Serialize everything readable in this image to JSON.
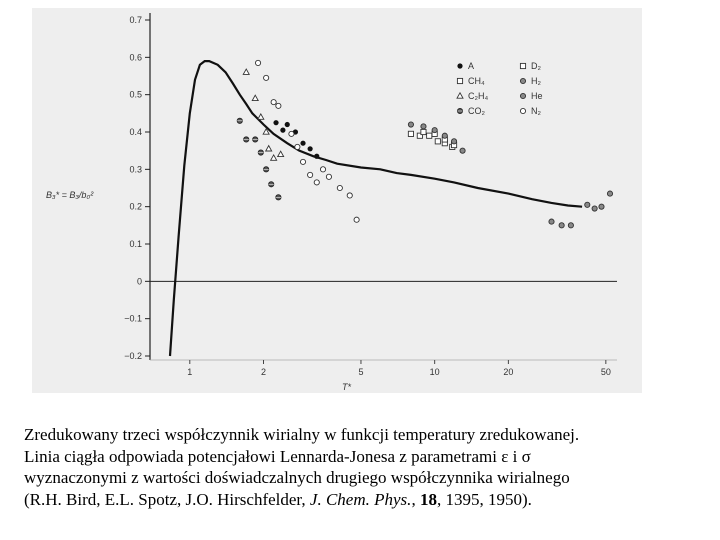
{
  "chart_data": {
    "type": "scatter",
    "ylabel": "B₃* = B₃/b₀²",
    "xlabel": "T*",
    "x_scale": "log",
    "xlim": [
      0.77,
      52
    ],
    "ylim": [
      -0.2,
      0.7
    ],
    "y_ticks": [
      -0.2,
      -0.1,
      0,
      0.1,
      0.2,
      0.3,
      0.4,
      0.5,
      0.6,
      0.7
    ],
    "y_tick_labels": [
      "−0.2",
      "−0.1",
      "0",
      "0.1",
      "0.2",
      "0.3",
      "0.4",
      "0.5",
      "0.6",
      "0.7"
    ],
    "x_ticks": [
      1,
      2,
      5,
      10,
      20,
      50
    ],
    "x_tick_labels": [
      "1",
      "2",
      "5",
      "10",
      "20",
      "50"
    ],
    "legend_position": "top-right",
    "curve": {
      "name": "Lennard-Jones",
      "x": [
        0.83,
        0.86,
        0.9,
        0.95,
        1.0,
        1.05,
        1.1,
        1.15,
        1.2,
        1.3,
        1.4,
        1.5,
        1.6,
        1.7,
        1.8,
        2.0,
        2.2,
        2.5,
        2.8,
        3.2,
        3.6,
        4.0,
        5.0,
        6.0,
        7.0,
        8.0,
        10.0,
        12.0,
        15.0,
        20.0,
        25.0,
        30.0,
        35.0,
        40.0
      ],
      "y": [
        -0.2,
        -0.05,
        0.12,
        0.31,
        0.45,
        0.54,
        0.58,
        0.59,
        0.59,
        0.58,
        0.56,
        0.53,
        0.5,
        0.475,
        0.45,
        0.42,
        0.395,
        0.37,
        0.35,
        0.335,
        0.325,
        0.315,
        0.305,
        0.3,
        0.29,
        0.285,
        0.275,
        0.265,
        0.25,
        0.235,
        0.22,
        0.21,
        0.203,
        0.2
      ]
    },
    "series": [
      {
        "name": "A",
        "marker": "filled-circle",
        "points": [
          [
            2.25,
            0.425
          ],
          [
            2.4,
            0.405
          ],
          [
            2.5,
            0.42
          ],
          [
            2.7,
            0.4
          ],
          [
            2.9,
            0.37
          ],
          [
            3.1,
            0.355
          ],
          [
            3.3,
            0.335
          ]
        ]
      },
      {
        "name": "CH₄",
        "marker": "hollow-square",
        "points": [
          [
            8.0,
            0.395
          ],
          [
            8.7,
            0.39
          ],
          [
            9.5,
            0.39
          ],
          [
            10.3,
            0.375
          ],
          [
            11.0,
            0.37
          ],
          [
            11.8,
            0.36
          ]
        ]
      },
      {
        "name": "C₂H₄",
        "marker": "hollow-triangle",
        "points": [
          [
            1.7,
            0.56
          ],
          [
            1.85,
            0.49
          ],
          [
            1.95,
            0.44
          ],
          [
            2.05,
            0.4
          ],
          [
            2.1,
            0.355
          ],
          [
            2.2,
            0.33
          ],
          [
            2.35,
            0.34
          ]
        ]
      },
      {
        "name": "CO₂",
        "marker": "crossed-circle",
        "points": [
          [
            1.6,
            0.43
          ],
          [
            1.7,
            0.38
          ],
          [
            1.85,
            0.38
          ],
          [
            1.95,
            0.345
          ],
          [
            2.05,
            0.3
          ],
          [
            2.15,
            0.26
          ],
          [
            2.3,
            0.225
          ]
        ]
      },
      {
        "name": "D₂",
        "marker": "hollow-square",
        "points": [
          [
            9.0,
            0.4
          ],
          [
            10.0,
            0.395
          ],
          [
            11.0,
            0.38
          ],
          [
            12.0,
            0.365
          ]
        ]
      },
      {
        "name": "H₂",
        "marker": "gray-dot-circle",
        "points": [
          [
            30.0,
            0.16
          ],
          [
            33.0,
            0.15
          ],
          [
            36.0,
            0.15
          ],
          [
            42.0,
            0.205
          ],
          [
            45.0,
            0.195
          ],
          [
            48.0,
            0.2
          ],
          [
            52.0,
            0.235
          ]
        ]
      },
      {
        "name": "He",
        "marker": "gray-dot-circle",
        "points": [
          [
            8.0,
            0.42
          ],
          [
            9.0,
            0.415
          ],
          [
            10.0,
            0.405
          ],
          [
            11.0,
            0.39
          ],
          [
            12.0,
            0.375
          ],
          [
            13.0,
            0.35
          ]
        ]
      },
      {
        "name": "N₂",
        "marker": "hollow-circle",
        "points": [
          [
            1.9,
            0.585
          ],
          [
            2.05,
            0.545
          ],
          [
            2.2,
            0.48
          ],
          [
            2.3,
            0.47
          ],
          [
            2.6,
            0.395
          ],
          [
            2.75,
            0.36
          ],
          [
            2.9,
            0.32
          ],
          [
            3.1,
            0.285
          ],
          [
            3.3,
            0.265
          ],
          [
            3.5,
            0.3
          ],
          [
            3.7,
            0.28
          ],
          [
            4.1,
            0.25
          ],
          [
            4.5,
            0.23
          ],
          [
            4.8,
            0.165
          ]
        ]
      }
    ]
  },
  "caption": {
    "line1": "Zredukowany trzeci współczynnik wirialny w funkcji temperatury zredukowanej.",
    "line2": "Linia ciągła odpowiada potencjałowi Lennarda-Jonesa z parametrami ε i σ",
    "line3": "wyznaczonymi z wartości doświadczalnych drugiego współczynnika wirialnego",
    "line4_pre": "(R.H. Bird, E.L. Spotz, J.O. Hirschfelder, ",
    "line4_journal": "J. Chem. Phys.",
    "line4_sep": ", ",
    "line4_volume": "18",
    "line4_post": ", 1395, 1950)."
  }
}
